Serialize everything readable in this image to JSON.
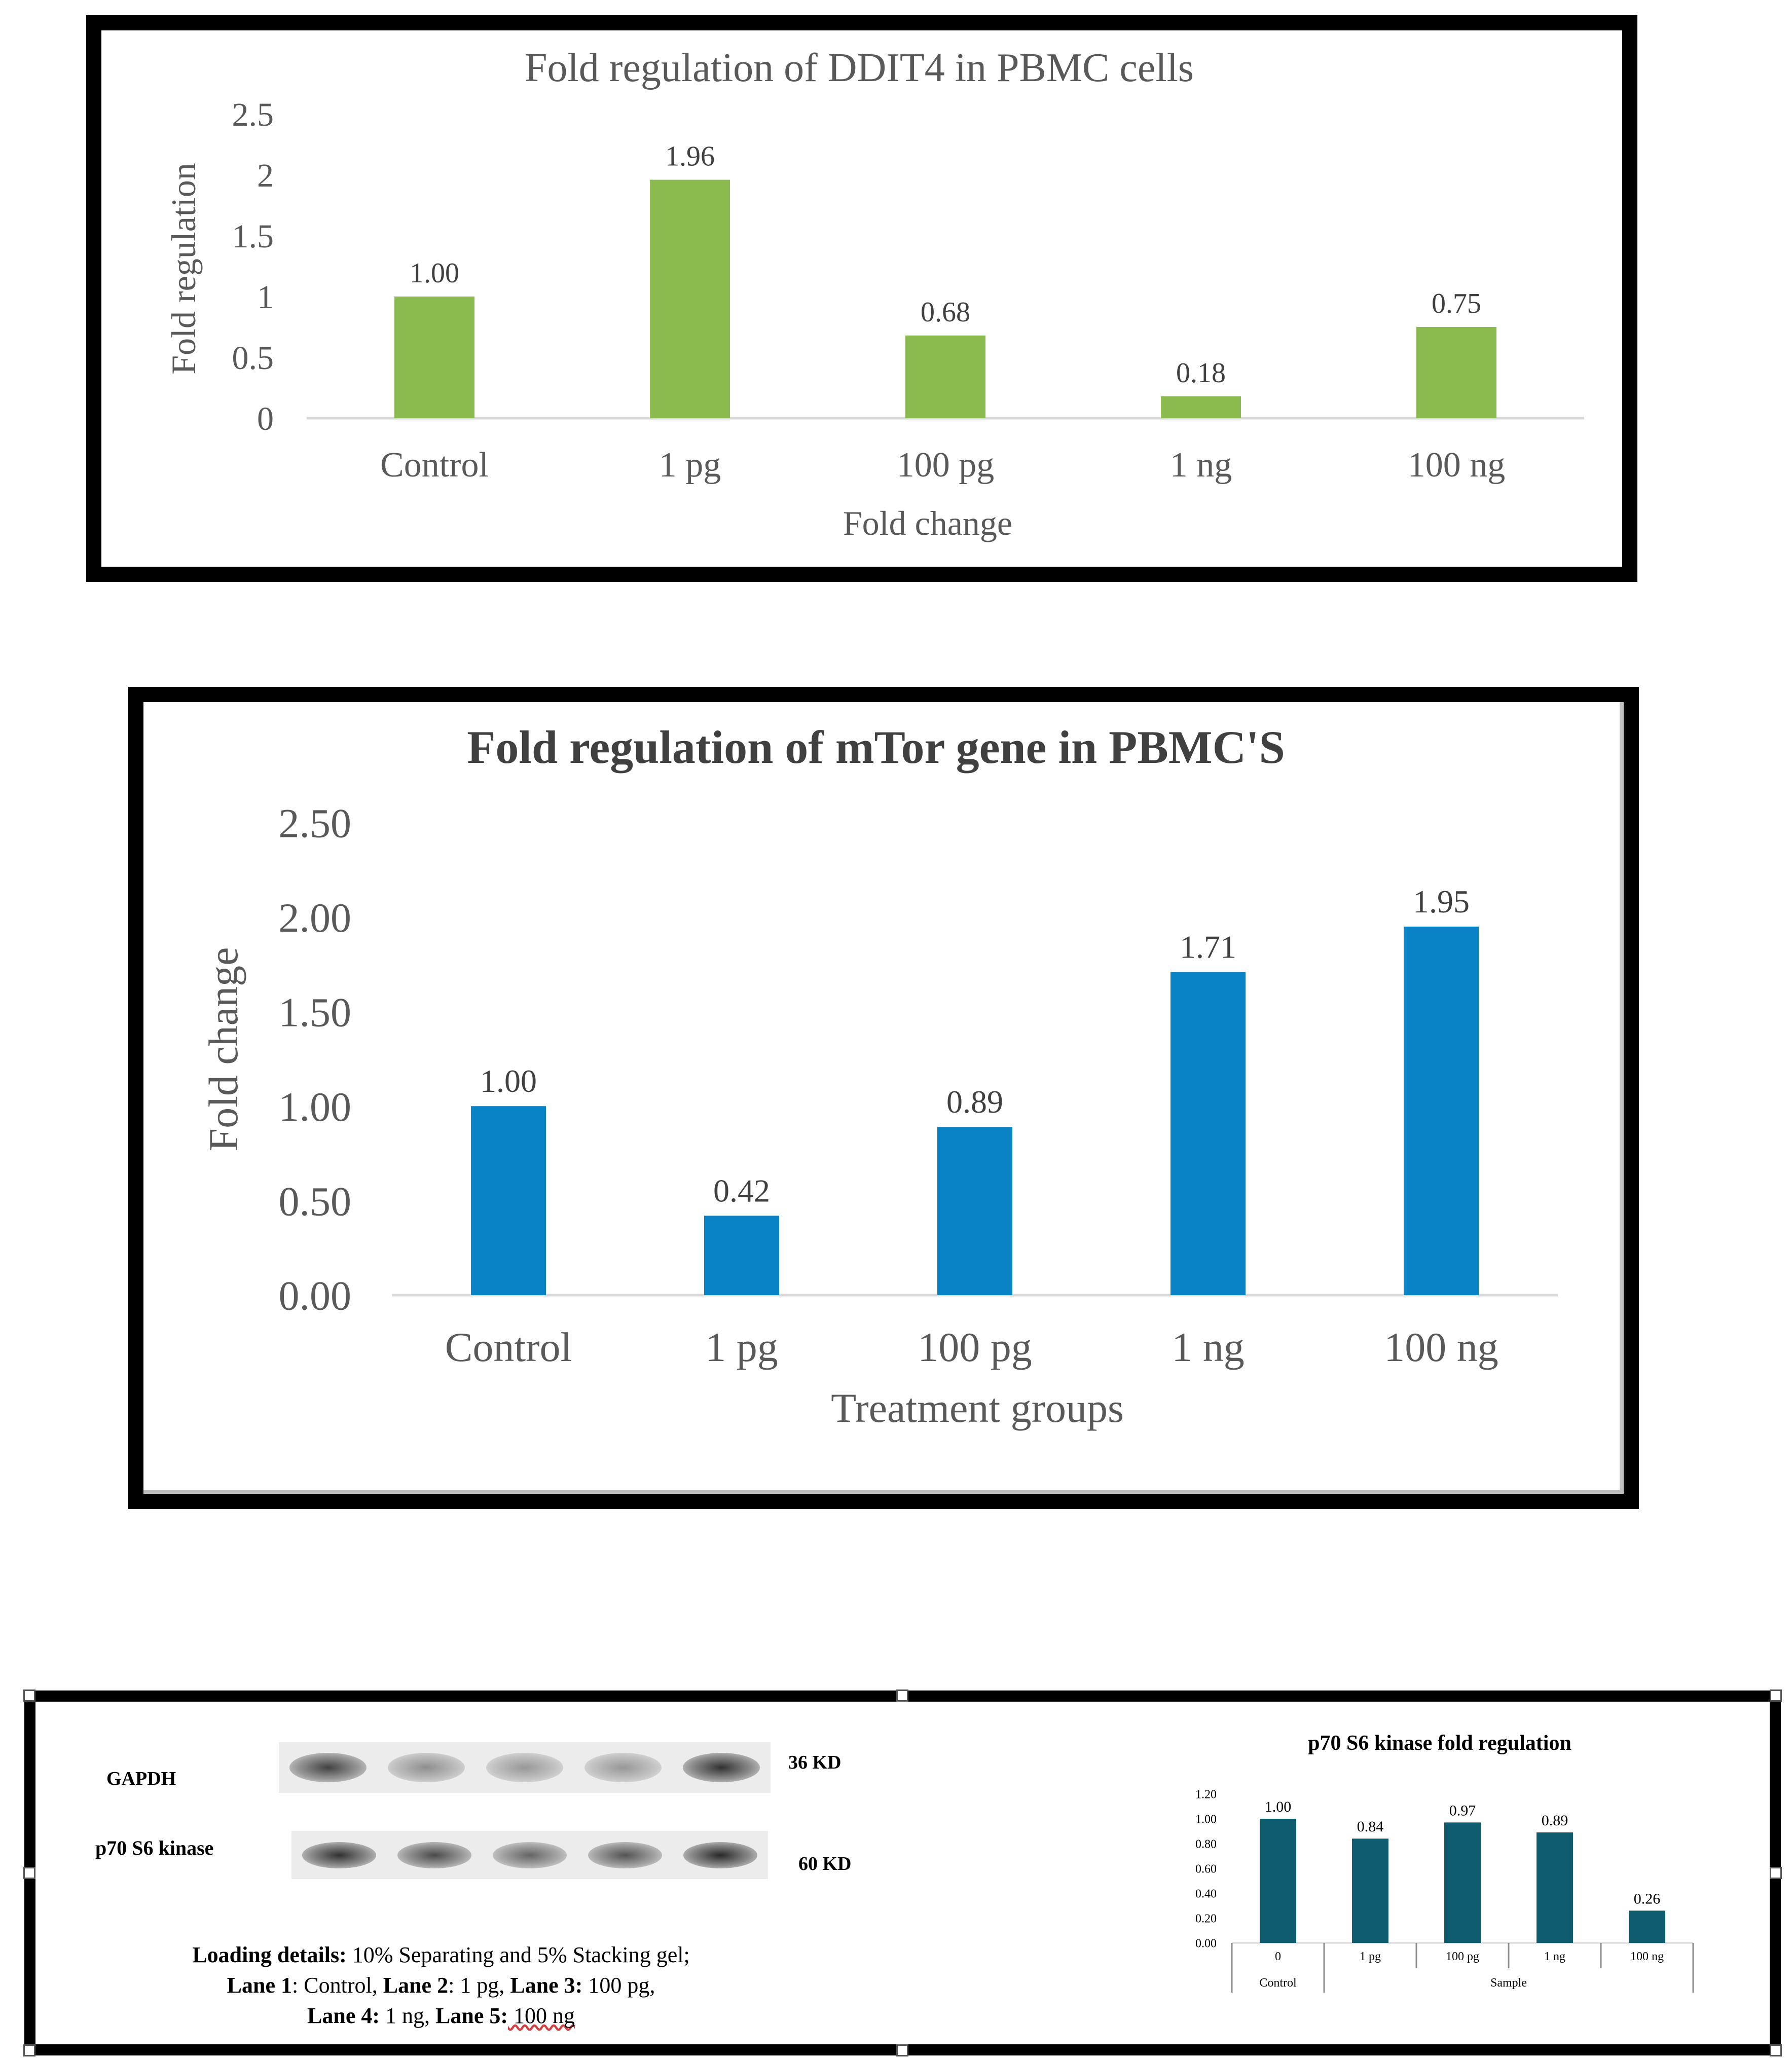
{
  "chart_data": [
    {
      "type": "bar",
      "title": "Fold regulation of DDIT4 in PBMC cells",
      "xlabel": "Fold change",
      "ylabel": "Fold regulation",
      "categories": [
        "Control",
        "1 pg",
        "100 pg",
        "1 ng",
        "100 ng"
      ],
      "values": [
        1.0,
        1.96,
        0.68,
        0.18,
        0.75
      ],
      "value_labels": [
        "1.00",
        "1.96",
        "0.68",
        "0.18",
        "0.75"
      ],
      "yticks": [
        "0",
        "0.5",
        "1",
        "1.5",
        "2",
        "2.5"
      ],
      "ylim": [
        0,
        2.5
      ],
      "color": "#8BBB4E",
      "grid": false
    },
    {
      "type": "bar",
      "title": "Fold regulation of mTor gene in PBMC'S",
      "xlabel": "Treatment groups",
      "ylabel": "Fold  change",
      "categories": [
        "Control",
        "1 pg",
        "100 pg",
        "1 ng",
        "100 ng"
      ],
      "values": [
        1.0,
        0.42,
        0.89,
        1.71,
        1.95
      ],
      "value_labels": [
        "1.00",
        "0.42",
        "0.89",
        "1.71",
        "1.95"
      ],
      "yticks": [
        "0.00",
        "0.50",
        "1.00",
        "1.50",
        "2.00",
        "2.50"
      ],
      "ylim": [
        0,
        2.5
      ],
      "color": "#0A82C6",
      "grid": false
    },
    {
      "type": "bar",
      "title": "p70 S6 kinase  fold regulation",
      "categories": [
        "0",
        "1 pg",
        "100 pg",
        "1 ng",
        "100 ng"
      ],
      "group_labels": [
        "Control",
        "Sample"
      ],
      "values": [
        1.0,
        0.84,
        0.97,
        0.89,
        0.26
      ],
      "value_labels": [
        "1.00",
        "0.84",
        "0.97",
        "0.89",
        "0.26"
      ],
      "yticks": [
        "0.00",
        "0.20",
        "0.40",
        "0.60",
        "0.80",
        "1.00",
        "1.20"
      ],
      "ylim": [
        0,
        1.2
      ],
      "color": "#0E5C6E",
      "grid": false
    }
  ],
  "western_blot": {
    "gapdh_label": "GAPDH",
    "gapdh_size": "36 KD",
    "p70_label": "p70 S6 kinase",
    "p70_size": "60 KD",
    "gapdh_band_intensity": [
      0.85,
      0.4,
      0.35,
      0.35,
      0.95
    ],
    "p70_band_intensity": [
      0.95,
      0.8,
      0.65,
      0.75,
      1.0
    ],
    "loading_line1_bold": "Loading details:",
    "loading_line1_text": " 10% Separating and 5% Stacking gel;",
    "lane1_bold": "Lane 1",
    "lane1_text": ": Control, ",
    "lane2_bold": "Lane 2",
    "lane2_text": ": 1 pg, ",
    "lane3_bold": "Lane 3:",
    "lane3_text": " 100 pg,",
    "lane4_bold": "Lane 4:",
    "lane4_text": " 1 ng,  ",
    "lane5_bold": "Lane 5:",
    "lane5_text": " 100 ng"
  }
}
